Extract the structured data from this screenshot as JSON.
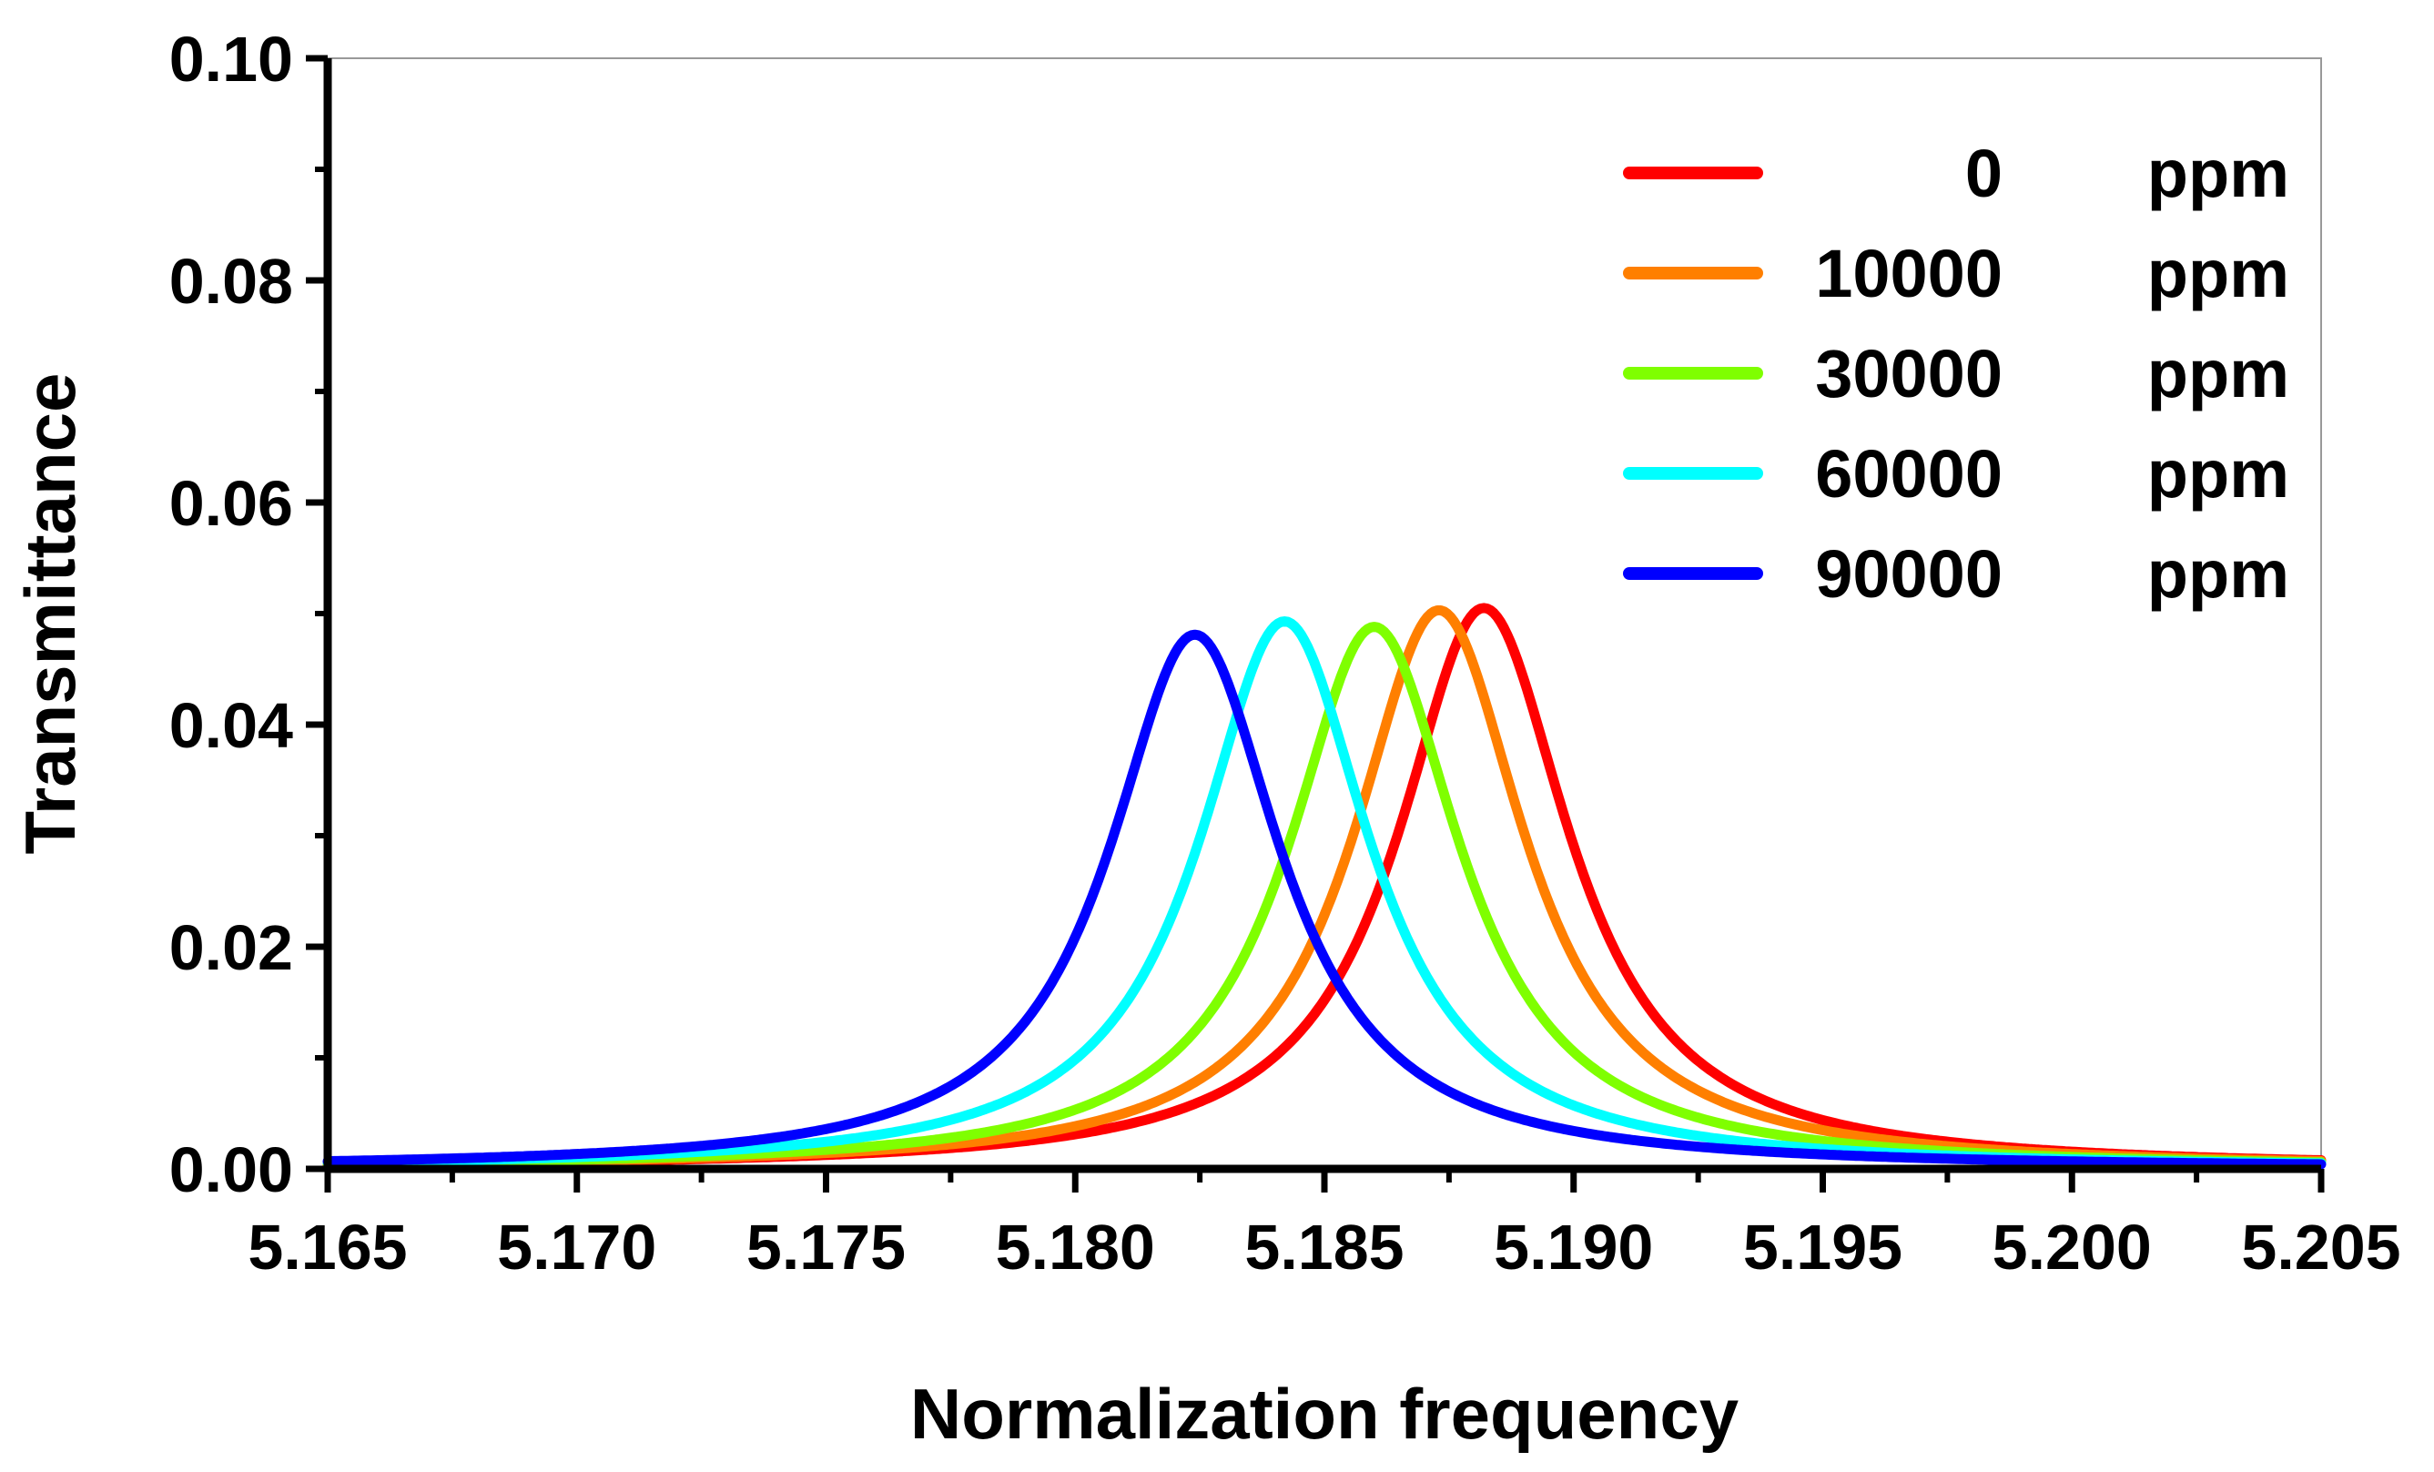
{
  "chart_data": {
    "type": "line",
    "title": "",
    "xlabel": "Normalization frequency",
    "ylabel": "Transmittance",
    "xlim": [
      5.165,
      5.205
    ],
    "ylim": [
      0.0,
      0.1
    ],
    "xticks": [
      "5.165",
      "5.170",
      "5.175",
      "5.180",
      "5.185",
      "5.190",
      "5.195",
      "5.200",
      "5.205"
    ],
    "yticks": [
      "0.00",
      "0.02",
      "0.04",
      "0.06",
      "0.08",
      "0.10"
    ],
    "grid": false,
    "legend_position": "top-right",
    "series": [
      {
        "name": "0",
        "unit": "ppm",
        "color": "#ff0000",
        "peak_x": 5.1882,
        "peak_y": 0.0505,
        "half_width": 0.0021
      },
      {
        "name": "10000",
        "unit": "ppm",
        "color": "#ff7f00",
        "peak_x": 5.1873,
        "peak_y": 0.0503,
        "half_width": 0.0021
      },
      {
        "name": "30000",
        "unit": "ppm",
        "color": "#7fff00",
        "peak_x": 5.186,
        "peak_y": 0.0488,
        "half_width": 0.0021
      },
      {
        "name": "60000",
        "unit": "ppm",
        "color": "#00ffff",
        "peak_x": 5.1842,
        "peak_y": 0.0493,
        "half_width": 0.0021
      },
      {
        "name": "90000",
        "unit": "ppm",
        "color": "#0000ff",
        "peak_x": 5.1824,
        "peak_y": 0.0481,
        "half_width": 0.0021
      }
    ]
  }
}
